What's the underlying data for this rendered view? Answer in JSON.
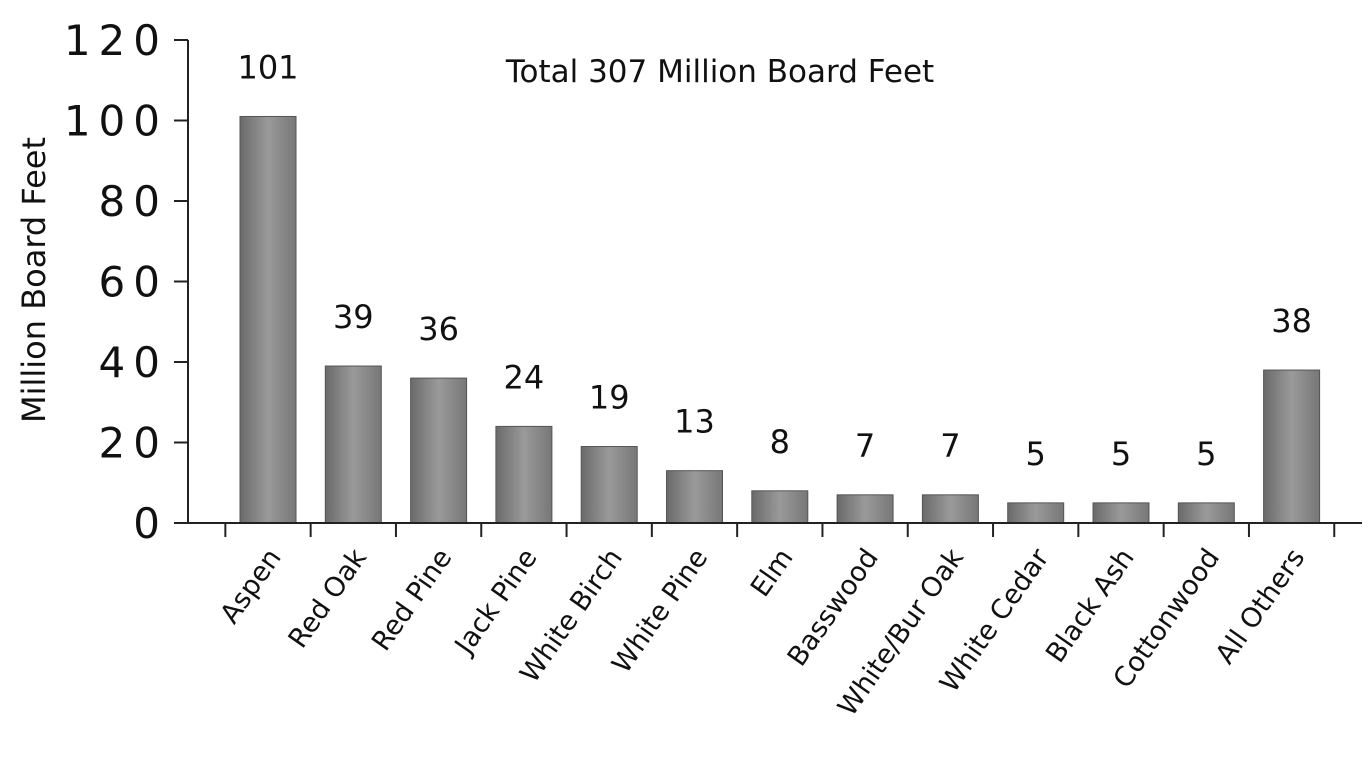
{
  "chart_data": {
    "type": "bar",
    "title": "",
    "annotation": "Total 307 Million Board Feet",
    "xlabel": "",
    "ylabel": "Million Board Feet",
    "ylim": [
      0,
      120
    ],
    "yticks": [
      "0",
      "20",
      "40",
      "60",
      "80",
      "100",
      "120"
    ],
    "grid": false,
    "categories": [
      "Aspen",
      "Red Oak",
      "Red Pine",
      "Jack Pine",
      "White Birch",
      "White Pine",
      "Elm",
      "Basswood",
      "White/Bur Oak",
      "White Cedar",
      "Black Ash",
      "Cottonwood",
      "All Others"
    ],
    "values": [
      101,
      39,
      36,
      24,
      19,
      13,
      8,
      7,
      7,
      5,
      5,
      5,
      38
    ],
    "data_labels": [
      "101",
      "39",
      "36",
      "24",
      "19",
      "13",
      "8",
      "7",
      "7",
      "5",
      "5",
      "5",
      "38"
    ],
    "bar_color": "#8a8a8a"
  }
}
